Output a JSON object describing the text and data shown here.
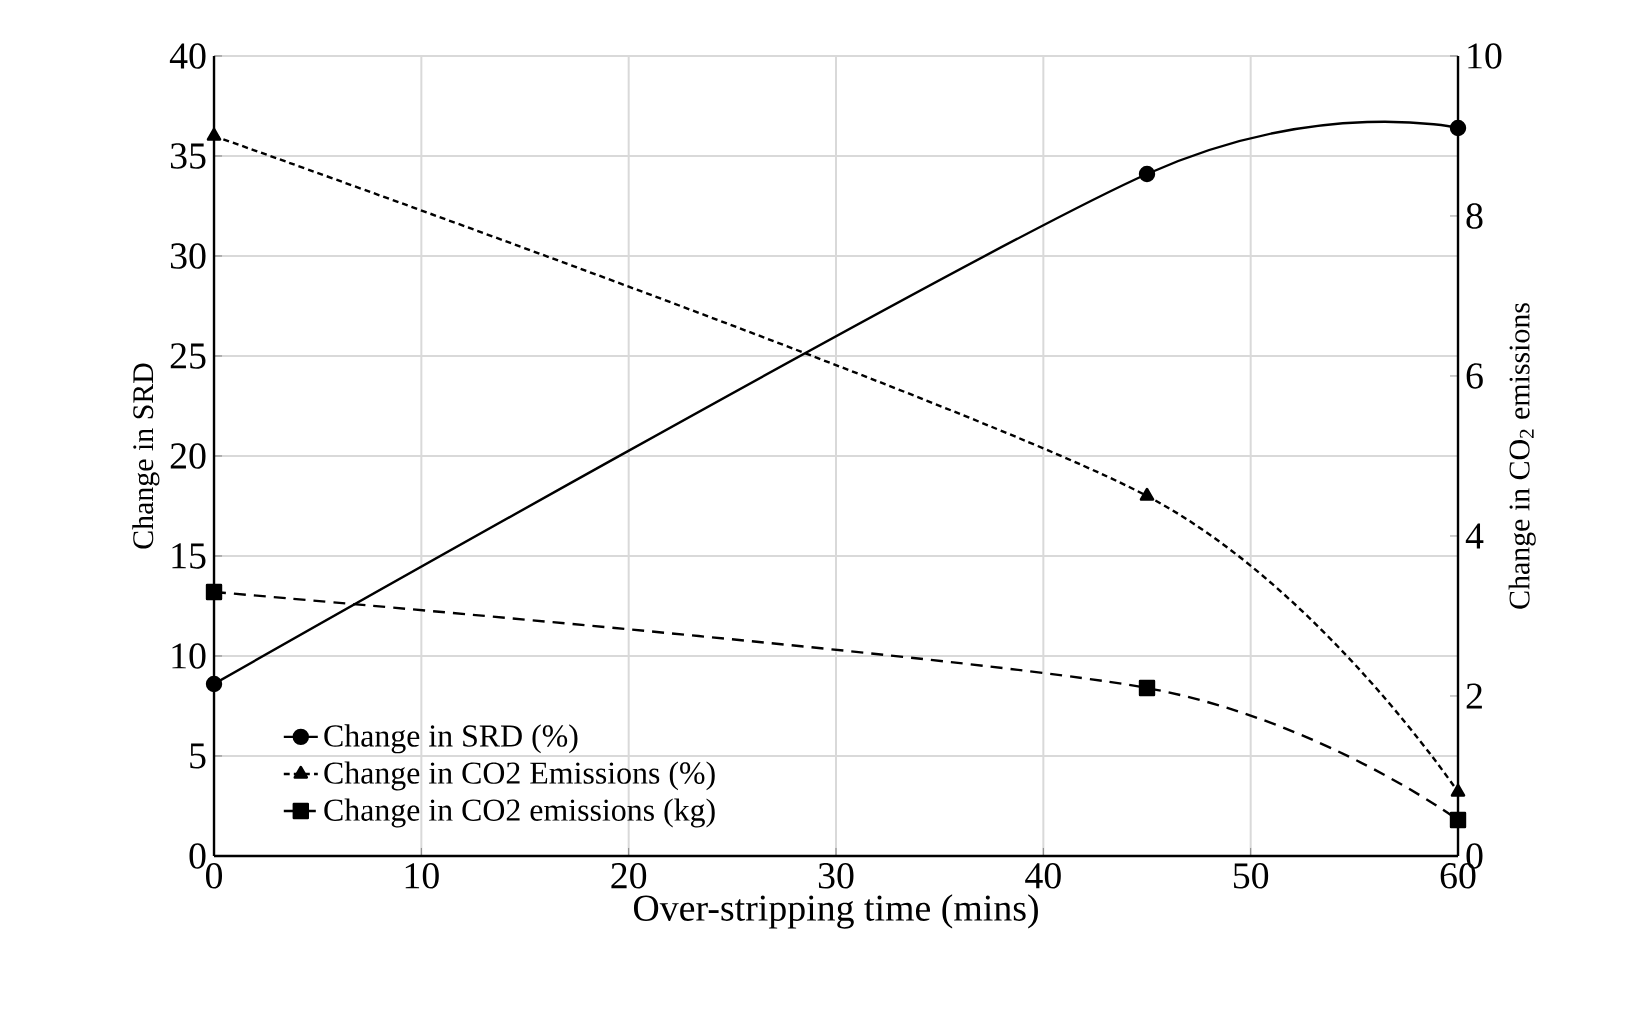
{
  "chart_data": {
    "type": "line",
    "xlabel": "Over-stripping time (mins)",
    "ylabel": "Change in SRD",
    "y2label": "Change in CO$_{2}$ emissions",
    "x": [
      0,
      45,
      60
    ],
    "series": [
      {
        "name": "Change in SRD (%)",
        "color": "#000000",
        "values": [
          8.6,
          34.1,
          36.4
        ],
        "marker": "circle",
        "line_style": "solid"
      },
      {
        "name": "Change in CO2 Emissions (%)",
        "color": "#000000",
        "values": [
          9.0,
          4.5,
          0.8
        ],
        "axis": "y2",
        "marker": "triangle",
        "line_style": "dotted"
      },
      {
        "name": "Change in CO2 emissions (kg)",
        "color": "#000000",
        "values": [
          3.3,
          2.1,
          0.45
        ],
        "axis": "y2",
        "marker": "square",
        "line_style": "dashed"
      }
    ],
    "xlim": [
      0,
      60
    ],
    "xticks": [
      0,
      10,
      20,
      30,
      40,
      50,
      60
    ],
    "ylim": [
      0,
      40
    ],
    "yticks": [
      0,
      5,
      10,
      15,
      20,
      25,
      30,
      35,
      40
    ],
    "y2lim": [
      0,
      10
    ],
    "y2ticks": [
      0,
      2,
      4,
      6,
      8,
      10
    ],
    "grid": true,
    "legend": "bottom left"
  }
}
